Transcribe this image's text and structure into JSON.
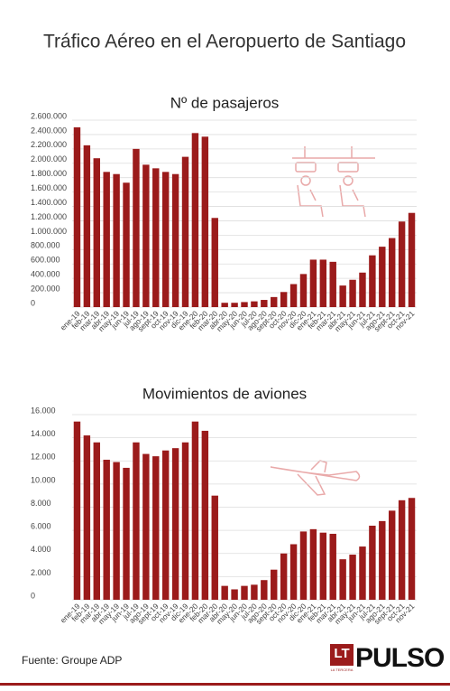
{
  "title": "Tráfico Aéreo en el Aeropuerto de Santiago",
  "source": "Fuente:  Groupe  ADP",
  "logo": {
    "mark": "LT",
    "sub": "LA TERCERA",
    "name": "PULSO"
  },
  "chart_data": [
    {
      "type": "bar",
      "title": "Nº de pasajeros",
      "color": "#9b1b1b",
      "grid": true,
      "categories": [
        "ene-19",
        "feb-19",
        "mar-19",
        "abr-19",
        "may-19",
        "jun-19",
        "jul-19",
        "ago-19",
        "sept-19",
        "oct-19",
        "nov-19",
        "dic-19",
        "ene-20",
        "feb-20",
        "mar-20",
        "abr-20",
        "may-20",
        "jun-20",
        "jul-20",
        "ago-20",
        "sept-20",
        "oct-20",
        "nov-20",
        "dic-20",
        "ene-21",
        "feb-21",
        "mar-21",
        "abr-21",
        "may-21",
        "jun-21",
        "jul-21",
        "ago-21",
        "sept-21",
        "oct-21",
        "nov-21"
      ],
      "values": [
        2500000,
        2250000,
        2070000,
        1880000,
        1850000,
        1730000,
        2200000,
        1980000,
        1930000,
        1880000,
        1850000,
        2090000,
        2420000,
        2370000,
        1240000,
        60000,
        60000,
        70000,
        80000,
        100000,
        140000,
        210000,
        320000,
        460000,
        660000,
        660000,
        630000,
        300000,
        380000,
        480000,
        720000,
        840000,
        960000,
        1190000,
        1310000
      ],
      "ylim": [
        0,
        2600000
      ],
      "yticks": [
        0,
        {
          "value": 200000,
          "label": "200.000"
        },
        {
          "value": 400000,
          "label": "400.000"
        },
        {
          "value": 600000,
          "label": "600.000"
        },
        {
          "value": 800000,
          "label": "800.000"
        },
        {
          "value": 1000000,
          "label": "1.000.000"
        },
        {
          "value": 1200000,
          "label": "1.200.000"
        },
        {
          "value": 1400000,
          "label": "1.400.000"
        },
        {
          "value": 1600000,
          "label": "1.600.000"
        },
        {
          "value": 1800000,
          "label": "1.800.000"
        },
        {
          "value": 2000000,
          "label": "2.000.000"
        },
        {
          "value": 2200000,
          "label": "2.200.000"
        },
        {
          "value": 2400000,
          "label": "2.400.000"
        },
        {
          "value": 2600000,
          "label": "2.600.000"
        }
      ]
    },
    {
      "type": "bar",
      "title": "Movimientos de aviones",
      "color": "#9b1b1b",
      "grid": true,
      "categories": [
        "ene-19",
        "feb-19",
        "mar-19",
        "abr-19",
        "may-19",
        "jun-19",
        "jul-19",
        "ago-19",
        "sept-19",
        "oct-19",
        "nov-19",
        "dic-19",
        "ene-20",
        "feb-20",
        "mar-20",
        "abr-20",
        "may-20",
        "jun-20",
        "jul-20",
        "ago-20",
        "sept-20",
        "oct-20",
        "nov-20",
        "dic-20",
        "ene-21",
        "feb-21",
        "mar-21",
        "abr-21",
        "may-21",
        "jun-21",
        "jul-21",
        "ago-21",
        "sept-21",
        "oct-21",
        "nov-21"
      ],
      "values": [
        15400,
        14200,
        13600,
        12100,
        11900,
        11400,
        13600,
        12600,
        12400,
        12900,
        13100,
        13600,
        15400,
        14600,
        9000,
        1200,
        900,
        1200,
        1300,
        1700,
        2600,
        4000,
        4800,
        5900,
        6100,
        5800,
        5700,
        3500,
        3900,
        4600,
        6400,
        6800,
        7700,
        8600,
        8800
      ],
      "ylim": [
        0,
        16000
      ],
      "yticks": [
        0,
        {
          "value": 2000,
          "label": "2.000"
        },
        {
          "value": 4000,
          "label": "4.000"
        },
        {
          "value": 6000,
          "label": "6.000"
        },
        {
          "value": 8000,
          "label": "8.000"
        },
        {
          "value": 10000,
          "label": "10.000"
        },
        {
          "value": 12000,
          "label": "12.000"
        },
        {
          "value": 14000,
          "label": "14.000"
        },
        {
          "value": 16000,
          "label": "16.000"
        }
      ]
    }
  ]
}
